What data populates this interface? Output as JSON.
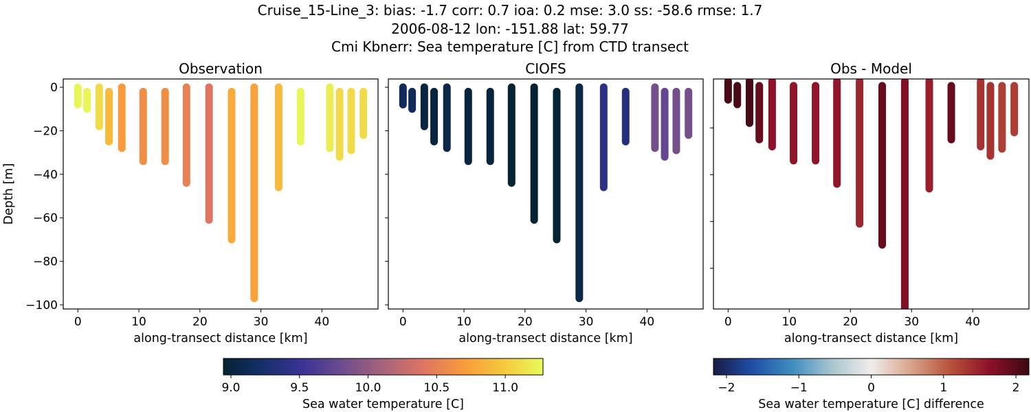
{
  "title_lines": [
    "Cruise_15-Line_3: bias: -1.7  corr: 0.7  ioa: 0.2  mse: 3.0  ss: -58.6  rmse: 1.7",
    "2006-08-12 lon: -151.88 lat: 59.77",
    "Cmi Kbnerr: Sea temperature [C] from CTD transect"
  ],
  "chart_data": [
    {
      "type": "scatter",
      "title": "Observation",
      "xlabel": "along-transect distance [km]",
      "ylabel": "Depth [m]",
      "xlim": [
        -2.4,
        49.2
      ],
      "ylim": [
        -101.9,
        3.8
      ],
      "xticks": [
        0,
        10,
        20,
        30,
        40
      ],
      "yticks": [
        0,
        -20,
        -40,
        -60,
        -80,
        -100
      ],
      "ytick_labels": [
        "0",
        "−20",
        "−40",
        "−60",
        "−80",
        "−100"
      ],
      "xtick_labels": [
        "0",
        "10",
        "20",
        "30",
        "40"
      ],
      "field": "obs",
      "colormap": "thermal"
    },
    {
      "type": "scatter",
      "title": "CIOFS",
      "xlabel": "along-transect distance [km]",
      "xlim": [
        -2.4,
        49.2
      ],
      "ylim": [
        -101.9,
        3.8
      ],
      "xticks": [
        0,
        10,
        20,
        30,
        40
      ],
      "yticks": [
        0,
        -20,
        -40,
        -60,
        -80,
        -100
      ],
      "xtick_labels": [
        "0",
        "10",
        "20",
        "30",
        "40"
      ],
      "field": "model",
      "colormap": "thermal"
    },
    {
      "type": "scatter",
      "title": "Obs - Model",
      "xlabel": "along-transect distance [km]",
      "xlim": [
        -2.4,
        49.2
      ],
      "ylim": [
        -97.4,
        0.9
      ],
      "xticks": [
        0,
        10,
        20,
        30,
        40
      ],
      "yticks": [
        -20,
        -40,
        -60,
        -80
      ],
      "xtick_labels": [
        "0",
        "10",
        "20",
        "30",
        "40"
      ],
      "field": "diff",
      "colormap": "balance"
    }
  ],
  "casts": [
    {
      "x": 0.0,
      "top": 0,
      "bottom": -8,
      "obs": 11.25,
      "model": 9.15
    },
    {
      "x": 1.5,
      "top": -2,
      "bottom": -10,
      "obs": 11.25,
      "model": 9.15
    },
    {
      "x": 3.5,
      "top": 0,
      "bottom": -18,
      "obs": 11.1,
      "model": 9.0
    },
    {
      "x": 5.1,
      "top": -2,
      "bottom": -25,
      "obs": 10.9,
      "model": 9.0
    },
    {
      "x": 7.2,
      "top": 0,
      "bottom": -28,
      "obs": 10.7,
      "model": 9.05
    },
    {
      "x": 10.7,
      "top": -2,
      "bottom": -34,
      "obs": 10.6,
      "model": 9.0
    },
    {
      "x": 14.3,
      "top": -2,
      "bottom": -34,
      "obs": 10.6,
      "model": 9.0
    },
    {
      "x": 17.8,
      "top": 0,
      "bottom": -44,
      "obs": 10.5,
      "model": 8.9
    },
    {
      "x": 21.5,
      "top": 0,
      "bottom": -61,
      "obs": 10.4,
      "model": 8.95
    },
    {
      "x": 25.2,
      "top": -2,
      "bottom": -70,
      "obs": 10.8,
      "model": 8.9
    },
    {
      "x": 28.9,
      "top": 0,
      "bottom": -97,
      "obs": 10.75,
      "model": 9.05
    },
    {
      "x": 32.9,
      "top": 0,
      "bottom": -46,
      "obs": 10.9,
      "model": 9.4
    },
    {
      "x": 36.5,
      "top": -2,
      "bottom": -25,
      "obs": 11.25,
      "model": 9.35
    },
    {
      "x": 41.3,
      "top": 0,
      "bottom": -28,
      "obs": 11.2,
      "model": 9.85
    },
    {
      "x": 42.9,
      "top": -2,
      "bottom": -32,
      "obs": 11.1,
      "model": 9.75
    },
    {
      "x": 44.8,
      "top": -2,
      "bottom": -29,
      "obs": 11.1,
      "model": 9.85
    },
    {
      "x": 46.8,
      "top": -2,
      "bottom": -22,
      "obs": 11.1,
      "model": 9.85
    }
  ],
  "colorbars": [
    {
      "label": "Sea water temperature [C]",
      "range": [
        8.945,
        11.275
      ],
      "ticks": [
        9.0,
        9.5,
        10.0,
        10.5,
        11.0
      ],
      "tick_labels": [
        "9.0",
        "9.5",
        "10.0",
        "10.5",
        "11.0"
      ],
      "colormap": "thermal"
    },
    {
      "label": "Sea water temperature [C] difference",
      "range": [
        -2.18,
        2.18
      ],
      "ticks": [
        -2,
        -1,
        0,
        1,
        2
      ],
      "tick_labels": [
        "−2",
        "−1",
        "0",
        "1",
        "2"
      ],
      "colormap": "balance"
    }
  ],
  "colormaps": {
    "thermal": [
      "#042333",
      "#152f6b",
      "#3c3296",
      "#6f4d8e",
      "#a8637b",
      "#de7563",
      "#f89a3c",
      "#f7c73e",
      "#e8fa5b"
    ],
    "balance": [
      "#181c43",
      "#1f4fa8",
      "#3f8dc0",
      "#a9c6cf",
      "#f1ecec",
      "#d9a48c",
      "#b8523a",
      "#8e1028",
      "#3c0911"
    ]
  }
}
